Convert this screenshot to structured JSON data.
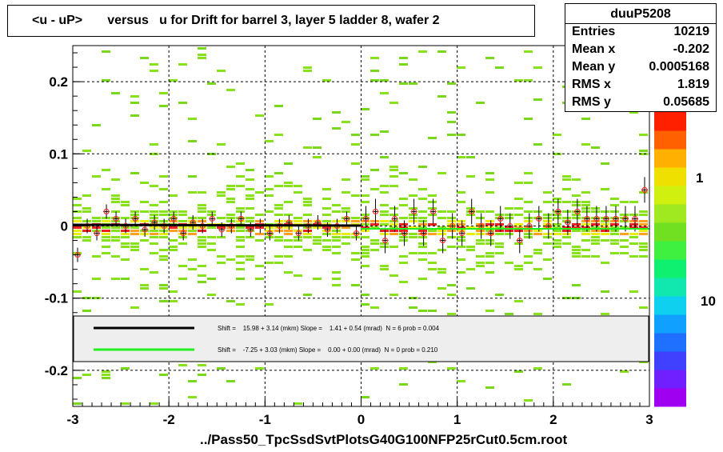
{
  "title": "<u - uP>       versus   u for Drift for barrel 3, layer 5 ladder 8, wafer 2",
  "stats": {
    "name": "duuP5208",
    "rows": [
      {
        "label": "Entries",
        "value": "10219"
      },
      {
        "label": "Mean x",
        "value": "-0.202"
      },
      {
        "label": "Mean y",
        "value": "0.0005168"
      },
      {
        "label": "RMS x",
        "value": "1.819"
      },
      {
        "label": "RMS y",
        "value": "0.05685"
      }
    ]
  },
  "file_label": "../Pass50_TpcSsdSvtPlotsG40G100NFP25rCut0.5cm.root",
  "colors": {
    "fit_black": "#000000",
    "fit_green": "#22ee22",
    "points": "#ff3030"
  },
  "chart_data": {
    "type": "heatmap",
    "xlim": [
      -3,
      3
    ],
    "ylim": [
      -0.25,
      0.25
    ],
    "x_ticks": [
      "-3",
      "-2",
      "-1",
      "0",
      "1",
      "2",
      "3"
    ],
    "y_ticks": [
      "0.2",
      "0.1",
      "0",
      "-0.1",
      "-0.2"
    ],
    "z_tick_labels": [
      "1",
      "10"
    ],
    "grid": true,
    "legend": [
      {
        "color": "black",
        "text": "Shift =    15.98 + 3.14 (mkm) Slope =    1.41 + 0.54 (mrad)  N = 6 prob = 0.004"
      },
      {
        "color": "green",
        "text": "Shift =    -7.25 + 3.03 (mkm) Slope =    0.00 + 0.00 (mrad)  N = 0 prob = 0.210"
      }
    ],
    "profile_x": [
      -2.95,
      -2.85,
      -2.75,
      -2.65,
      -2.55,
      -2.45,
      -2.35,
      -2.25,
      -2.15,
      -2.05,
      -1.95,
      -1.85,
      -1.75,
      -1.65,
      -1.55,
      -1.45,
      -1.35,
      -1.25,
      -1.15,
      -1.05,
      -0.95,
      -0.85,
      -0.75,
      -0.65,
      -0.55,
      -0.45,
      -0.35,
      -0.25,
      -0.15,
      -0.05,
      0.05,
      0.15,
      0.25,
      0.35,
      0.45,
      0.55,
      0.65,
      0.75,
      0.85,
      0.95,
      1.05,
      1.15,
      1.25,
      1.35,
      1.45,
      1.55,
      1.65,
      1.75,
      1.85,
      1.95,
      2.05,
      2.15,
      2.25,
      2.35,
      2.45,
      2.55,
      2.65,
      2.75,
      2.85,
      2.95
    ],
    "profile_y": [
      -0.04,
      0.0,
      -0.01,
      0.02,
      0.01,
      0.0,
      0.01,
      -0.005,
      0.005,
      0.0,
      0.01,
      -0.01,
      0.005,
      0.0,
      0.01,
      -0.005,
      0.0,
      0.01,
      -0.005,
      0.0,
      -0.01,
      0.0,
      0.005,
      -0.01,
      0.0,
      0.005,
      -0.005,
      0.0,
      0.01,
      -0.01,
      0.01,
      0.02,
      -0.02,
      0.01,
      -0.01,
      0.02,
      -0.01,
      0.02,
      -0.02,
      0.0,
      -0.01,
      0.02,
      0.0,
      -0.01,
      0.01,
      0.0,
      -0.02,
      0.0,
      0.01,
      0.0,
      0.02,
      0.005,
      0.02,
      0.01,
      0.01,
      0.01,
      0.01,
      0.01,
      0.01,
      0.05
    ]
  }
}
